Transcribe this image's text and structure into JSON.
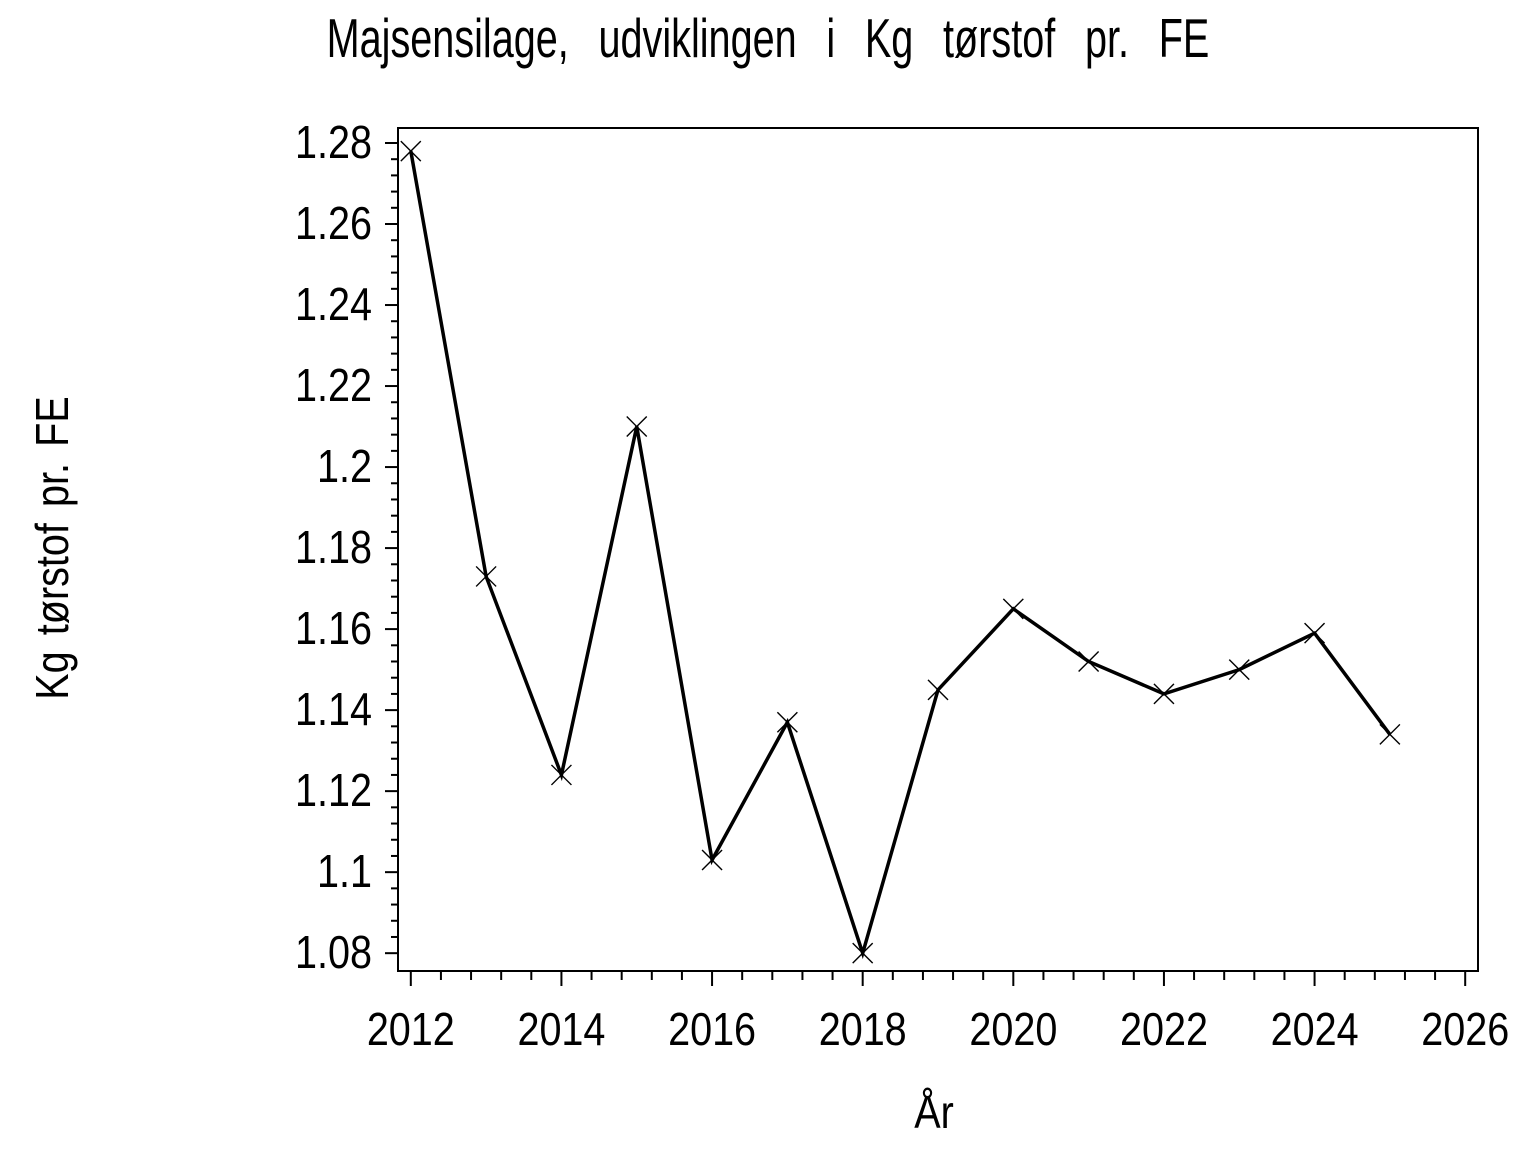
{
  "chart_data": {
    "type": "line",
    "title": "Majsensilage, udviklingen i Kg tørstof pr. FE",
    "xlabel": "År",
    "ylabel": "Kg tørstof pr. FE",
    "x": [
      2012,
      2013,
      2014,
      2015,
      2016,
      2017,
      2018,
      2019,
      2020,
      2021,
      2022,
      2023,
      2024,
      2025
    ],
    "y": [
      1.278,
      1.173,
      1.124,
      1.21,
      1.103,
      1.137,
      1.08,
      1.145,
      1.165,
      1.152,
      1.144,
      1.15,
      1.159,
      1.134
    ],
    "series": [
      {
        "name": "Kg tørstof pr. FE",
        "marker": "x",
        "color": "#000000"
      }
    ],
    "xlim": [
      2011.83,
      2026.17
    ],
    "ylim": [
      1.0756,
      1.2837
    ],
    "x_ticks_major": [
      2012,
      2014,
      2016,
      2018,
      2020,
      2022,
      2024,
      2026
    ],
    "x_tick_labels": [
      "2012",
      "2014",
      "2016",
      "2018",
      "2020",
      "2022",
      "2024",
      "2026"
    ],
    "x_minor_step": 0.4,
    "y_ticks_major": [
      1.08,
      1.1,
      1.12,
      1.14,
      1.16,
      1.18,
      1.2,
      1.22,
      1.24,
      1.26,
      1.28
    ],
    "y_tick_labels": [
      "1.08",
      "1.1",
      "1.12",
      "1.14",
      "1.16",
      "1.18",
      "1.2",
      "1.22",
      "1.24",
      "1.26",
      "1.28"
    ],
    "y_minor_step": 0.004,
    "grid": false,
    "legend": "none",
    "line_color": "#000000",
    "background_color": "#ffffff"
  }
}
